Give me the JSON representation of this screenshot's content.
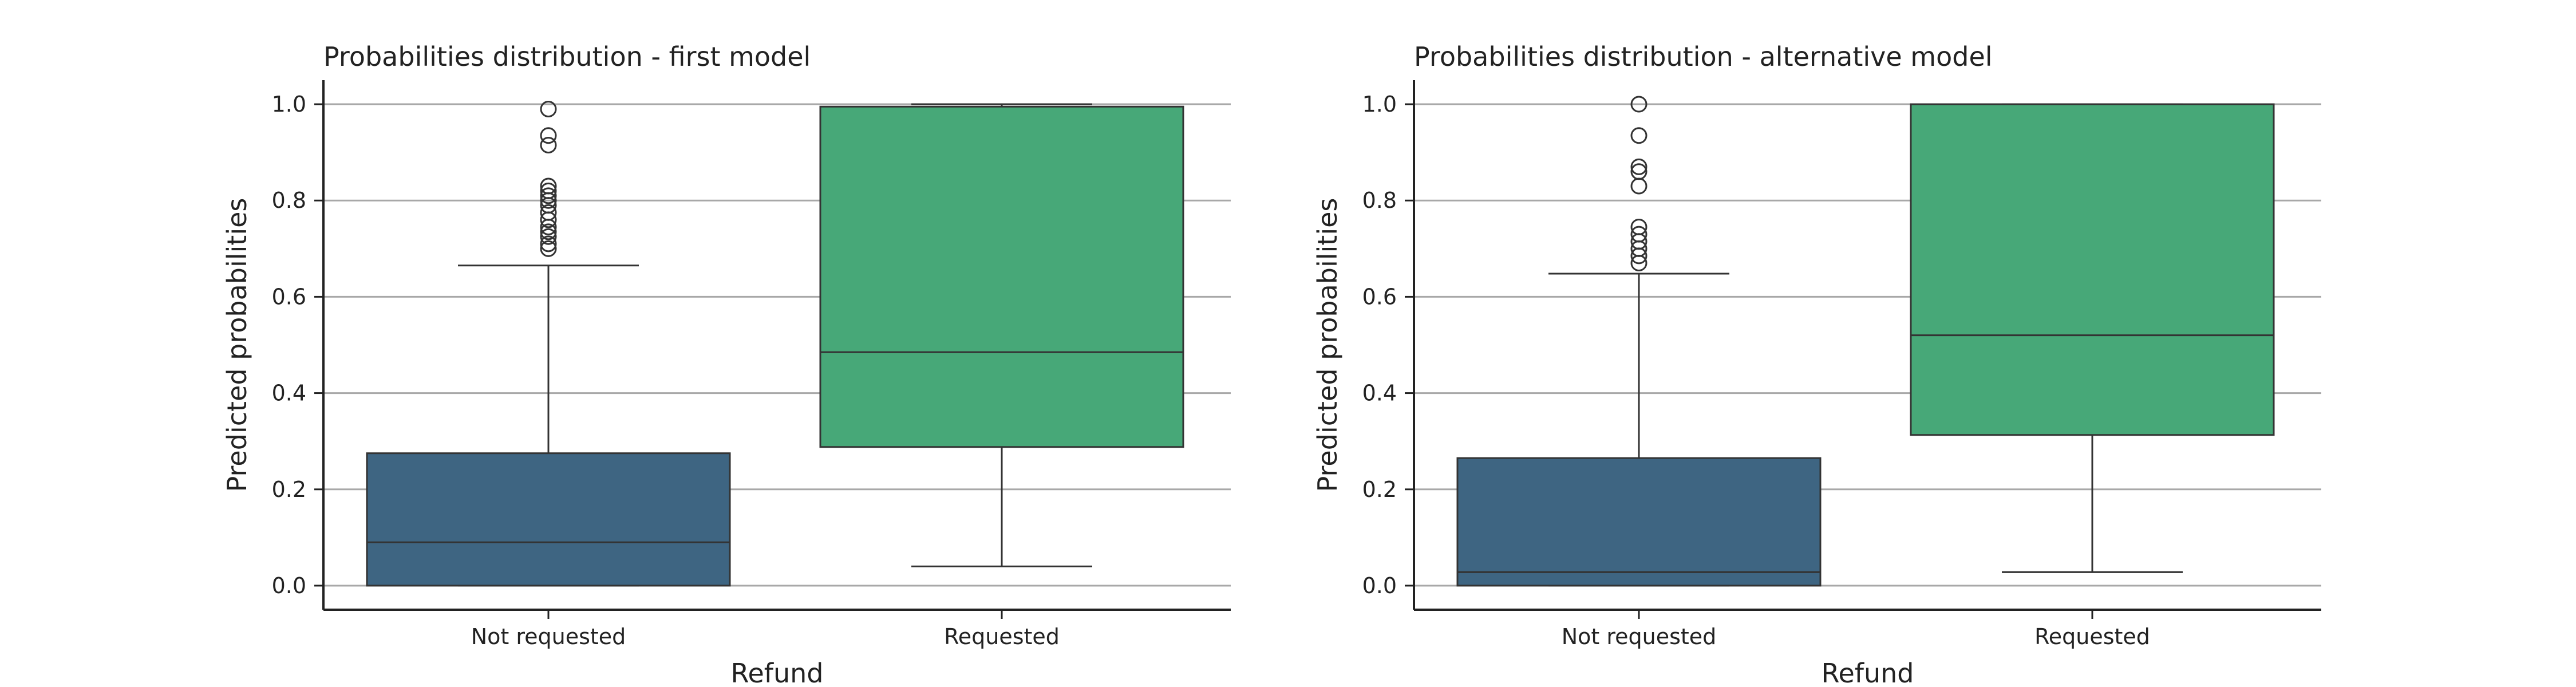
{
  "chart_data": [
    {
      "type": "box",
      "title": "Probabilities distribution - first model",
      "xlabel": "Refund",
      "ylabel": "Predicted probabilities",
      "ylim": [
        -0.05,
        1.05
      ],
      "yticks": [
        "0.0",
        "0.2",
        "0.4",
        "0.6",
        "0.8",
        "1.0"
      ],
      "grid": "horizontal",
      "categories": [
        "Not requested",
        "Requested"
      ],
      "colors": [
        "#3e6582",
        "#47a878"
      ],
      "boxes": [
        {
          "category": "Not requested",
          "whisker_low": 0.0,
          "q1": 0.0,
          "median": 0.09,
          "q3": 0.275,
          "whisker_high": 0.665,
          "outliers": [
            0.7,
            0.71,
            0.725,
            0.735,
            0.745,
            0.76,
            0.775,
            0.79,
            0.8,
            0.81,
            0.82,
            0.83,
            0.915,
            0.935,
            0.99
          ]
        },
        {
          "category": "Requested",
          "whisker_low": 0.04,
          "q1": 0.288,
          "median": 0.485,
          "q3": 0.995,
          "whisker_high": 1.0,
          "outliers": []
        }
      ]
    },
    {
      "type": "box",
      "title": "Probabilities distribution - alternative model",
      "xlabel": "Refund",
      "ylabel": "Predicted probabilities",
      "ylim": [
        -0.05,
        1.05
      ],
      "yticks": [
        "0.0",
        "0.2",
        "0.4",
        "0.6",
        "0.8",
        "1.0"
      ],
      "grid": "horizontal",
      "categories": [
        "Not requested",
        "Requested"
      ],
      "colors": [
        "#3e6582",
        "#47a878"
      ],
      "boxes": [
        {
          "category": "Not requested",
          "whisker_low": 0.0,
          "q1": 0.0,
          "median": 0.028,
          "q3": 0.265,
          "whisker_high": 0.648,
          "outliers": [
            0.67,
            0.685,
            0.7,
            0.715,
            0.73,
            0.745,
            0.83,
            0.86,
            0.87,
            0.935,
            1.0
          ]
        },
        {
          "category": "Requested",
          "whisker_low": 0.028,
          "q1": 0.313,
          "median": 0.52,
          "q3": 1.0,
          "whisker_high": 1.0,
          "outliers": []
        }
      ]
    }
  ]
}
